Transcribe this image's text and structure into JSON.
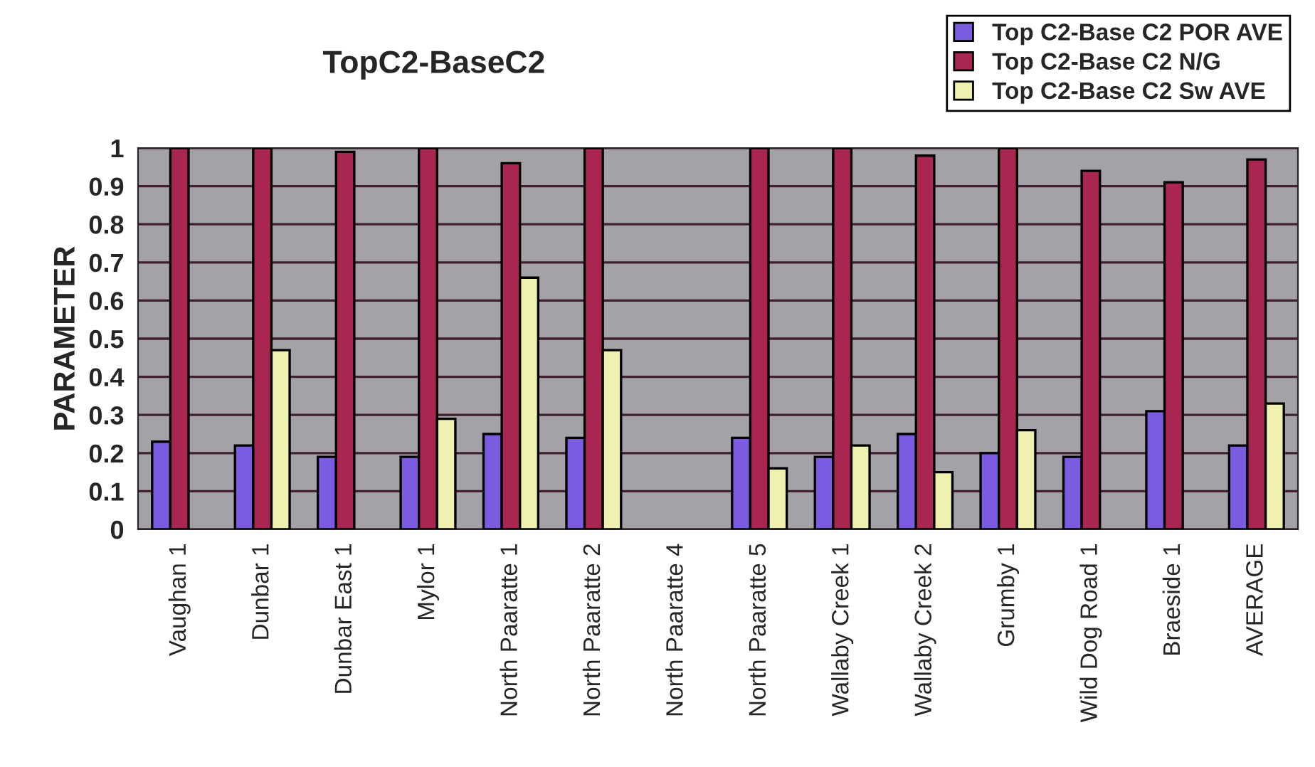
{
  "chart_data": {
    "type": "bar",
    "title": "TopC2-BaseC2",
    "ylabel": "PARAMETER",
    "categories": [
      "Vaughan 1",
      "Dunbar 1",
      "Dunbar East 1",
      "Mylor 1",
      "North Paaratte 1",
      "North Paaratte 2",
      "North Paaratte 4",
      "North Paaratte 5",
      "Wallaby Creek 1",
      "Wallaby Creek 2",
      "Grumby 1",
      "Wild Dog Road 1",
      "Braeside 1",
      "AVERAGE"
    ],
    "series": [
      {
        "name": "Top C2-Base C2 POR AVE",
        "color": "#7b5ce0",
        "values": [
          0.23,
          0.22,
          0.19,
          0.19,
          0.25,
          0.24,
          null,
          0.24,
          0.19,
          0.25,
          0.2,
          0.19,
          0.31,
          0.22
        ]
      },
      {
        "name": "Top C2-Base C2 N/G",
        "color": "#a8264f",
        "values": [
          1.0,
          1.0,
          0.99,
          1.0,
          0.96,
          1.0,
          null,
          1.0,
          1.0,
          0.98,
          1.0,
          0.94,
          0.91,
          0.97
        ]
      },
      {
        "name": "Top C2-Base C2 Sw AVE",
        "color": "#f0f0b0",
        "values": [
          null,
          0.47,
          null,
          0.29,
          0.66,
          0.47,
          null,
          0.16,
          0.22,
          0.15,
          0.26,
          null,
          null,
          0.33
        ]
      }
    ],
    "ylim": [
      0,
      1
    ],
    "yticks": [
      0,
      0.1,
      0.2,
      0.3,
      0.4,
      0.5,
      0.6,
      0.7,
      0.8,
      0.9,
      1
    ],
    "grid": "y",
    "legend": "top right"
  }
}
